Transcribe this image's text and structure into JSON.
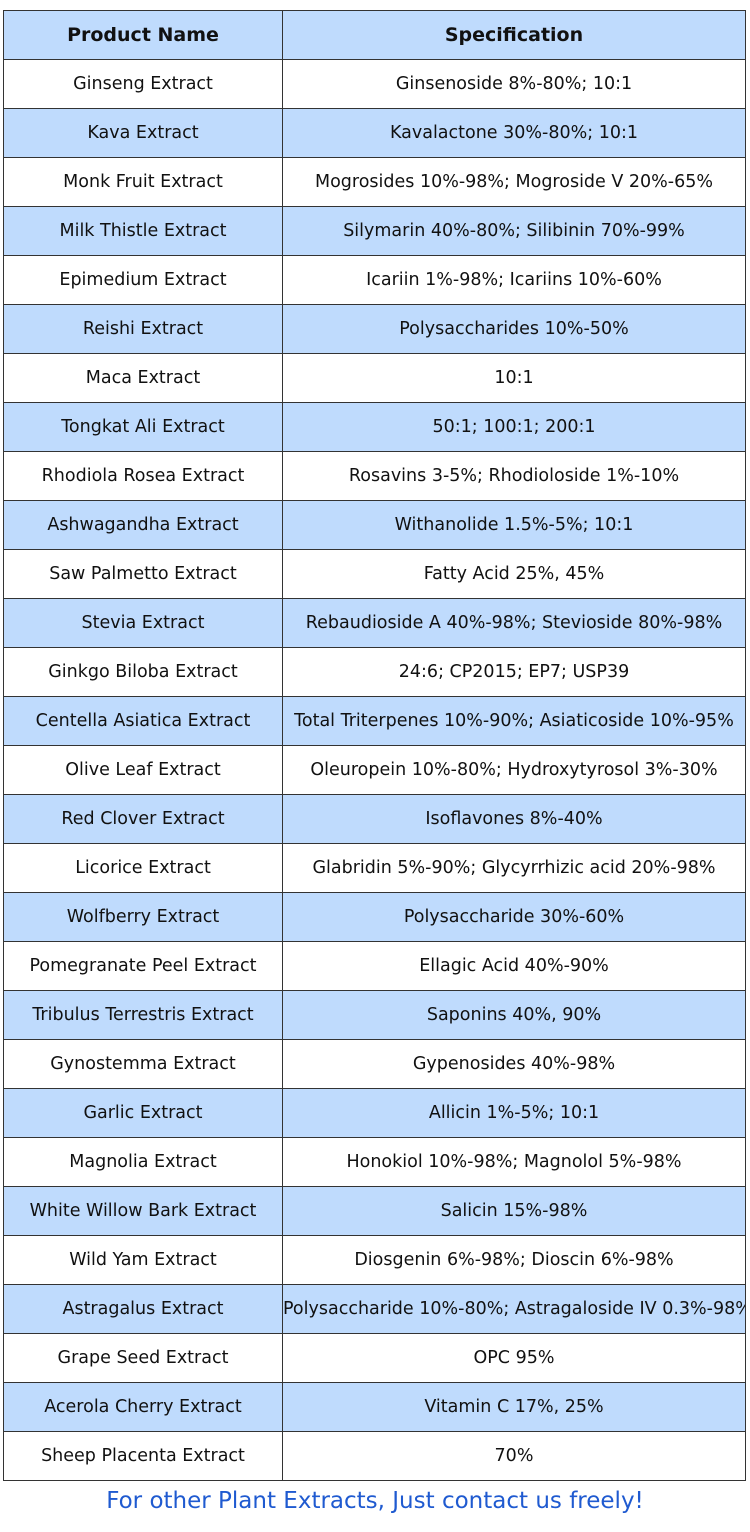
{
  "table": {
    "header": [
      "Product Name",
      "Specification"
    ],
    "rows": [
      [
        "Ginseng Extract",
        "Ginsenoside 8%-80%; 10:1"
      ],
      [
        "Kava Extract",
        "Kavalactone 30%-80%; 10:1"
      ],
      [
        "Monk Fruit Extract",
        "Mogrosides 10%-98%; Mogroside V 20%-65%"
      ],
      [
        "Milk Thistle Extract",
        "Silymarin 40%-80%; Silibinin 70%-99%"
      ],
      [
        "Epimedium Extract",
        "Icariin 1%-98%; Icariins 10%-60%"
      ],
      [
        "Reishi Extract",
        "Polysaccharides 10%-50%"
      ],
      [
        "Maca Extract",
        "10:1"
      ],
      [
        "Tongkat Ali Extract",
        "50:1; 100:1; 200:1"
      ],
      [
        "Rhodiola Rosea Extract",
        "Rosavins 3-5%; Rhodioloside 1%-10%"
      ],
      [
        "Ashwagandha Extract",
        "Withanolide 1.5%-5%; 10:1"
      ],
      [
        "Saw Palmetto Extract",
        "Fatty Acid 25%, 45%"
      ],
      [
        "Stevia Extract",
        "Rebaudioside A 40%-98%; Stevioside 80%-98%"
      ],
      [
        "Ginkgo Biloba Extract",
        "24:6; CP2015; EP7; USP39"
      ],
      [
        "Centella Asiatica Extract",
        "Total Triterpenes 10%-90%; Asiaticoside 10%-95%"
      ],
      [
        "Olive Leaf Extract",
        "Oleuropein 10%-80%; Hydroxytyrosol 3%-30%"
      ],
      [
        "Red Clover Extract",
        "Isoflavones 8%-40%"
      ],
      [
        "Licorice Extract",
        "Glabridin 5%-90%; Glycyrrhizic acid 20%-98%"
      ],
      [
        "Wolfberry Extract",
        "Polysaccharide 30%-60%"
      ],
      [
        "Pomegranate Peel Extract",
        "Ellagic Acid 40%-90%"
      ],
      [
        "Tribulus Terrestris Extract",
        "Saponins 40%, 90%"
      ],
      [
        "Gynostemma Extract",
        "Gypenosides 40%-98%"
      ],
      [
        "Garlic Extract",
        "Allicin 1%-5%; 10:1"
      ],
      [
        "Magnolia Extract",
        "Honokiol 10%-98%; Magnolol 5%-98%"
      ],
      [
        "White Willow Bark Extract",
        "Salicin 15%-98%"
      ],
      [
        "Wild Yam Extract",
        "Diosgenin 6%-98%; Dioscin 6%-98%"
      ],
      [
        "Astragalus Extract",
        "Polysaccharide 10%-80%; Astragaloside IV 0.3%-98%"
      ],
      [
        "Grape Seed Extract",
        "OPC 95%"
      ],
      [
        "Acerola Cherry Extract",
        "Vitamin C 17%, 25%"
      ],
      [
        "Sheep Placenta Extract",
        "70%"
      ]
    ]
  },
  "footer": "For other Plant Extracts, Just contact us freely!"
}
